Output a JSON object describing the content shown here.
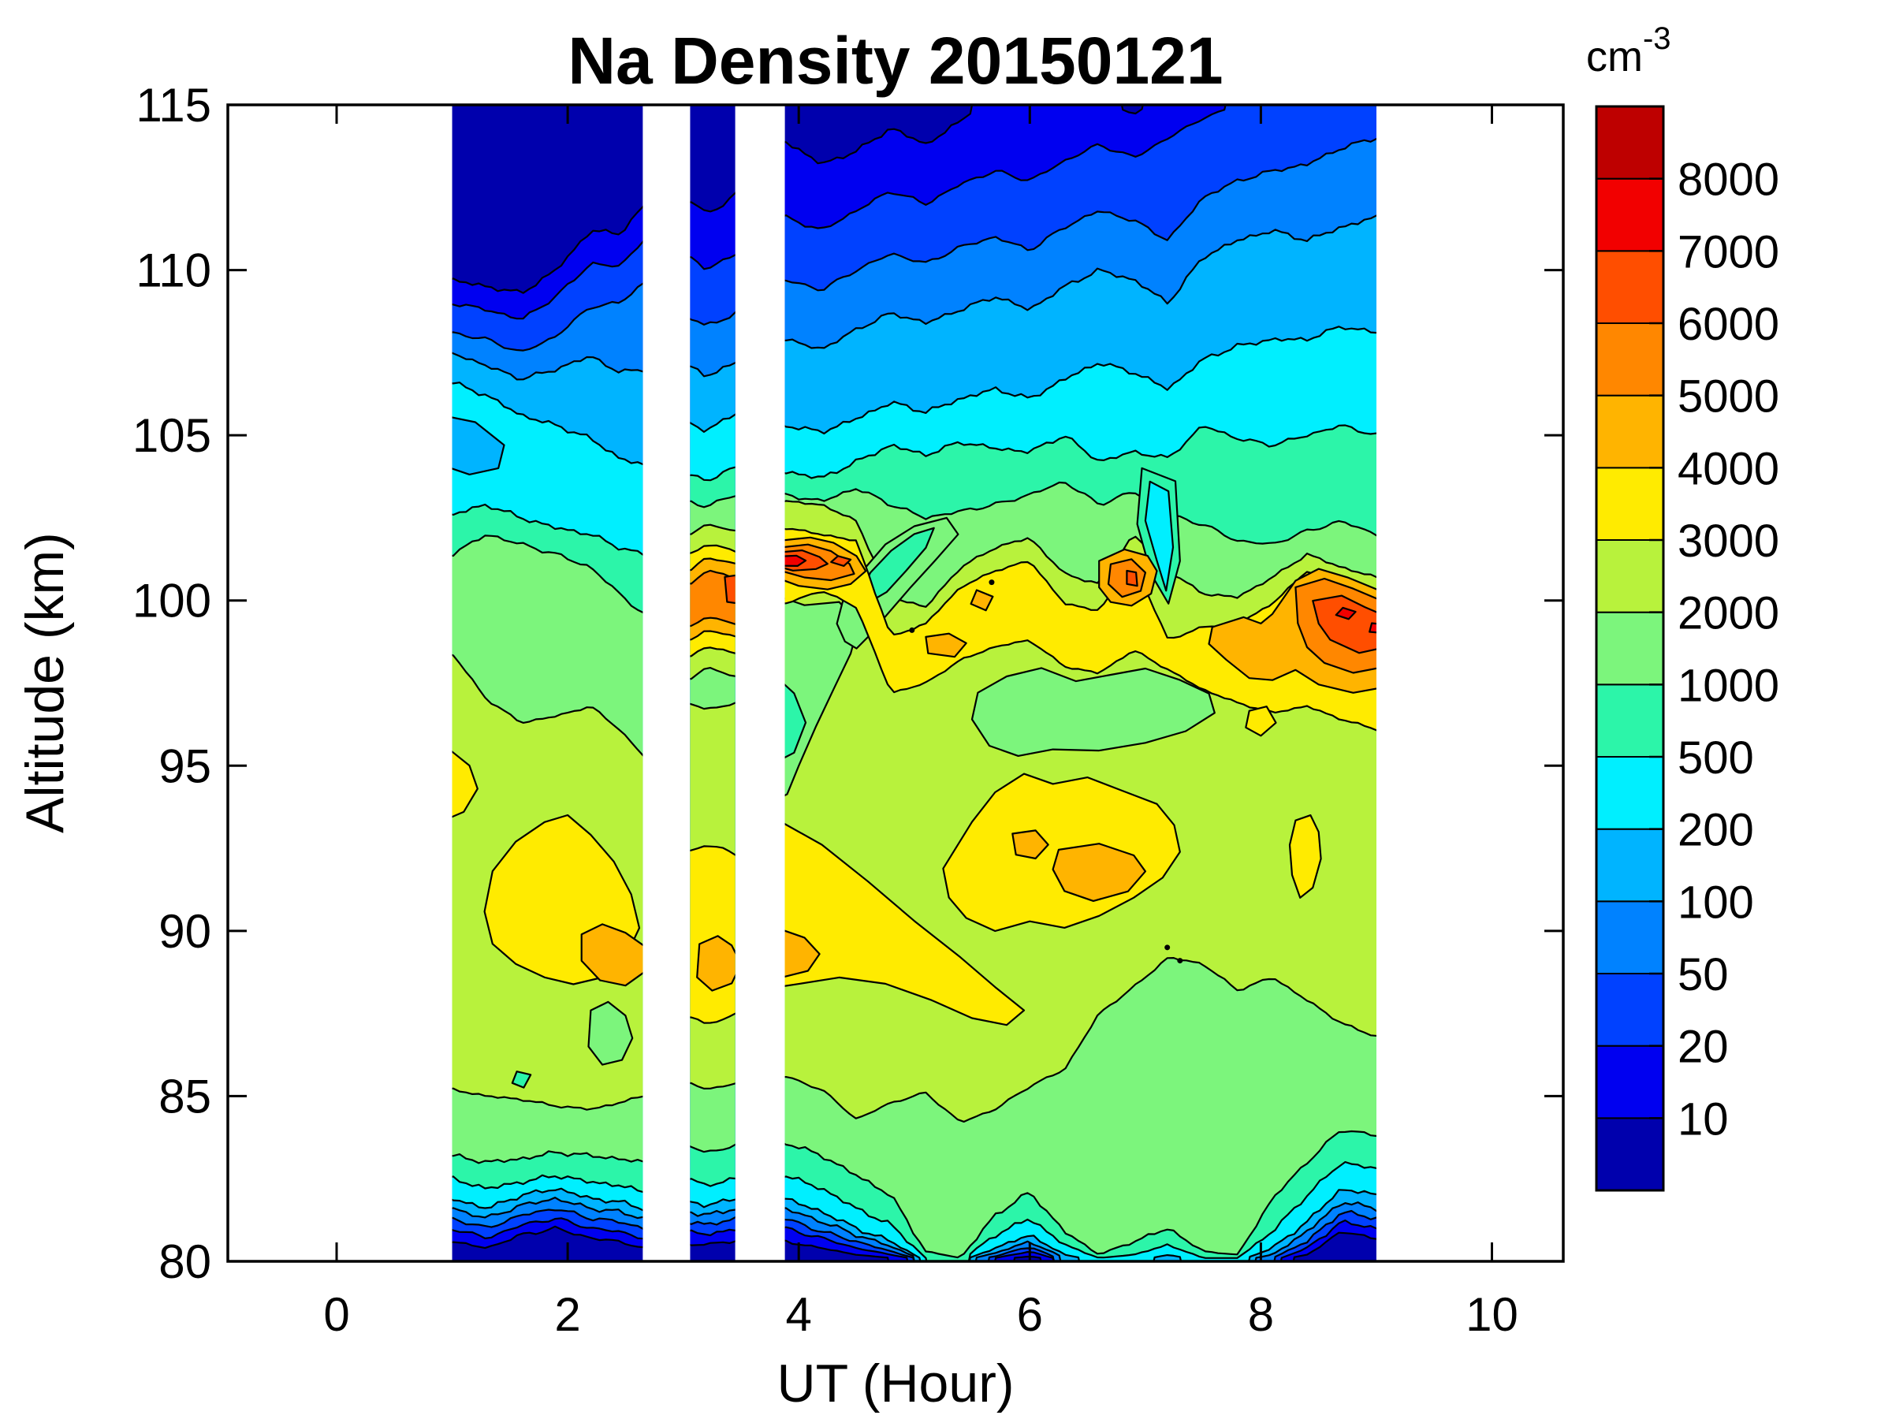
{
  "title": "Na Density 20150121",
  "axes": {
    "x_label": "UT (Hour)",
    "y_label": "Altitude (km)"
  },
  "colorbar": {
    "unit_base": "cm",
    "unit_exponent": "-3",
    "tick_labels": [
      "10",
      "20",
      "50",
      "100",
      "200",
      "500",
      "1000",
      "2000",
      "3000",
      "4000",
      "5000",
      "6000",
      "7000",
      "8000"
    ]
  },
  "chart_data": {
    "type": "heatmap",
    "subtype": "filled-contour",
    "title": "Na Density 20150121",
    "xlabel": "UT (Hour)",
    "ylabel": "Altitude (km)",
    "colorbar_unit": "cm-3",
    "xlim": [
      -0.95,
      10.63
    ],
    "ylim": [
      80,
      115
    ],
    "x_ticks": [
      0,
      2,
      4,
      6,
      8,
      10
    ],
    "y_ticks": [
      80,
      85,
      90,
      95,
      100,
      105,
      110,
      115
    ],
    "x_tick_labels": [
      "0",
      "2",
      "4",
      "6",
      "8",
      "10"
    ],
    "y_tick_labels": [
      "80",
      "85",
      "90",
      "95",
      "100",
      "105",
      "110",
      "115"
    ],
    "grid_on": false,
    "legend_position": "right-colorbar",
    "contour_levels_cm3": [
      10,
      20,
      50,
      100,
      200,
      500,
      1000,
      2000,
      3000,
      4000,
      5000,
      6000,
      7000,
      8000
    ],
    "level_colors": [
      "#0000AD",
      "#0000F0",
      "#0041FF",
      "#0082FF",
      "#00B4FF",
      "#00EFFF",
      "#2CF5A9",
      "#7CF57C",
      "#B8F23C",
      "#FFEB00",
      "#FFB400",
      "#FF8700",
      "#FF4E00",
      "#F20000",
      "#BE0000"
    ],
    "data_coverage_ut": [
      [
        1.0,
        2.65
      ],
      [
        3.06,
        3.45
      ],
      [
        3.88,
        9.0
      ]
    ],
    "data_gaps_ut": [
      [
        2.65,
        3.06
      ],
      [
        3.45,
        3.88
      ]
    ],
    "grid": {
      "ut_hours": [
        1,
        1.5,
        2,
        2.5,
        3,
        3.5,
        4,
        4.5,
        5,
        5.5,
        6,
        6.5,
        7,
        7.5,
        8,
        8.5,
        9
      ],
      "altitude_km": [
        115,
        112.5,
        110,
        107.5,
        105,
        102.5,
        100,
        97.5,
        95,
        92.5,
        90,
        87.5,
        85,
        82.5,
        80
      ],
      "density_cm3": [
        [
          5,
          5,
          6,
          6,
          8,
          null,
          9,
          12,
          15,
          12,
          18,
          14,
          22,
          28,
          35,
          40,
          45
        ],
        [
          8,
          8,
          9,
          10,
          12,
          null,
          15,
          20,
          25,
          22,
          30,
          35,
          42,
          50,
          60,
          70,
          80
        ],
        [
          16,
          18,
          20,
          22,
          25,
          null,
          30,
          40,
          50,
          45,
          60,
          70,
          85,
          100,
          120,
          150,
          170
        ],
        [
          60,
          70,
          80,
          75,
          90,
          null,
          100,
          120,
          150,
          140,
          170,
          200,
          250,
          300,
          350,
          400,
          450
        ],
        [
          250,
          220,
          280,
          300,
          320,
          null,
          350,
          400,
          450,
          500,
          550,
          600,
          700,
          800,
          900,
          1000,
          1100
        ],
        [
          800,
          900,
          950,
          1100,
          1500,
          null,
          2400,
          2100,
          1400,
          1600,
          1800,
          1500,
          1900,
          1700,
          2000,
          2400,
          2100
        ],
        [
          1500,
          1600,
          1700,
          1800,
          4200,
          null,
          6800,
          4100,
          2600,
          3900,
          3300,
          2800,
          5600,
          3400,
          3600,
          5800,
          7000
        ],
        [
          1800,
          1900,
          2000,
          2100,
          2600,
          null,
          2900,
          3200,
          3500,
          3100,
          3300,
          3400,
          3600,
          3900,
          4200,
          4700,
          5300
        ],
        [
          2200,
          2300,
          2400,
          2500,
          2600,
          null,
          2700,
          2500,
          2900,
          3300,
          3500,
          3400,
          3200,
          2900,
          3100,
          3300,
          2800
        ],
        [
          2600,
          3200,
          3400,
          2900,
          3100,
          null,
          3400,
          2800,
          2900,
          3400,
          3900,
          4300,
          3700,
          2800,
          2900,
          3300,
          2600
        ],
        [
          2800,
          3500,
          4300,
          3700,
          3800,
          null,
          4200,
          3100,
          2700,
          3100,
          3400,
          4500,
          3800,
          2600,
          2400,
          2300,
          2100
        ],
        [
          2400,
          2600,
          2800,
          2500,
          3300,
          null,
          3100,
          2600,
          2700,
          3100,
          2600,
          2400,
          2200,
          2100,
          1900,
          1800,
          1600
        ],
        [
          1700,
          1500,
          1800,
          1600,
          1900,
          null,
          2100,
          2200,
          2300,
          2200,
          2100,
          2000,
          1900,
          1800,
          1700,
          1500,
          1300
        ],
        [
          600,
          550,
          650,
          700,
          700,
          null,
          800,
          900,
          1100,
          1200,
          1000,
          1100,
          1200,
          1300,
          1100,
          700,
          500
        ],
        [
          5,
          5,
          6,
          6,
          6,
          null,
          6,
          10,
          30,
          80,
          20,
          60,
          150,
          40,
          90,
          15,
          8
        ]
      ]
    },
    "peaks": [
      {
        "ut": 4.1,
        "altitude_km": 101.3,
        "density_cm3": 7500
      },
      {
        "ut": 3.35,
        "altitude_km": 100.4,
        "density_cm3": 6800
      },
      {
        "ut": 6.85,
        "altitude_km": 100.7,
        "density_cm3": 6300
      },
      {
        "ut": 8.8,
        "altitude_km": 99.6,
        "density_cm3": 7600
      },
      {
        "ut": 2.3,
        "altitude_km": 89.4,
        "density_cm3": 4600
      },
      {
        "ut": 6.6,
        "altitude_km": 91.7,
        "density_cm3": 4500
      },
      {
        "ut": 3.3,
        "altitude_km": 88.9,
        "density_cm3": 4300
      }
    ]
  }
}
